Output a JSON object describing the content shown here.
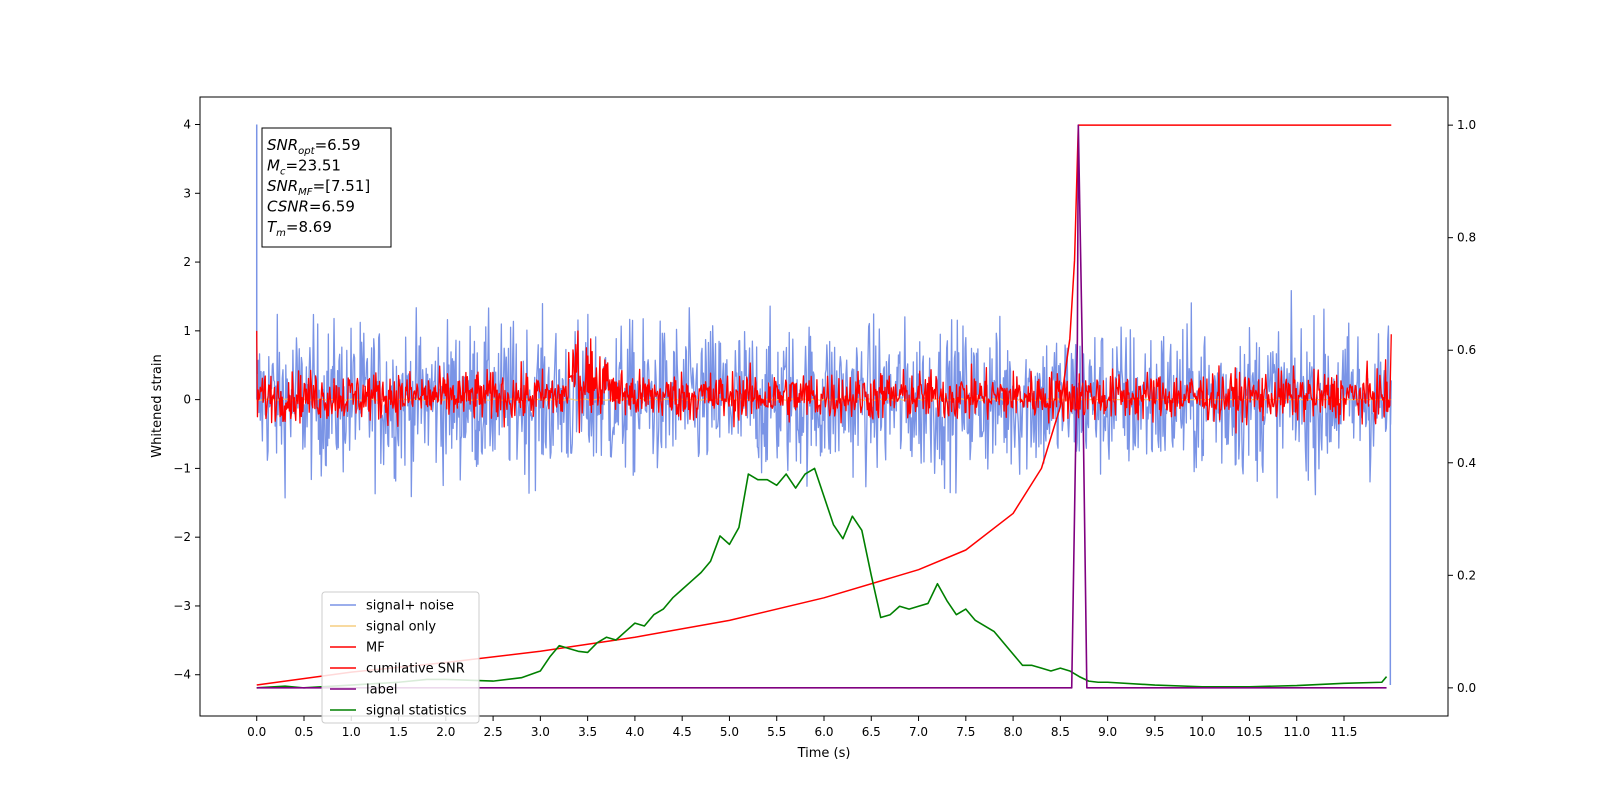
{
  "chart_data": {
    "type": "line",
    "xlabel": "Time (s)",
    "ylabel_left": "Whitened strain",
    "ylabel_right": "",
    "xlim": [
      -0.6,
      12.6
    ],
    "ylim_left": [
      -4.6,
      4.4
    ],
    "ylim_right": [
      -0.05,
      1.05
    ],
    "x_ticks": [
      "0.0",
      "0.5",
      "1.0",
      "1.5",
      "2.0",
      "2.5",
      "3.0",
      "3.5",
      "4.0",
      "4.5",
      "5.0",
      "5.5",
      "6.0",
      "6.5",
      "7.0",
      "7.5",
      "8.0",
      "8.5",
      "9.0",
      "9.5",
      "10.0",
      "10.5",
      "11.0",
      "11.5"
    ],
    "y_ticks_left": [
      "4",
      "3",
      "2",
      "1",
      "0",
      "−1",
      "−2",
      "−3",
      "−4"
    ],
    "y_ticks_right": [
      "1.0",
      "0.8",
      "0.6",
      "0.4",
      "0.2",
      "0.0"
    ],
    "grid": false,
    "legend_position": "lower-left",
    "annotation": {
      "lines": [
        {
          "var": "SNR",
          "sub": "opt",
          "value": "=6.59"
        },
        {
          "var": "M",
          "sub": "c",
          "value": "=23.51"
        },
        {
          "var": "SNR",
          "sub": "MF",
          "value": "=[7.51]"
        },
        {
          "var": "CSNR",
          "sub": "",
          "value": "=6.59"
        },
        {
          "var": "T",
          "sub": "m",
          "value": "=8.69"
        }
      ]
    },
    "series": [
      {
        "name": "signal+ noise",
        "color": "#7a94e6",
        "axis": "left",
        "style": "noise",
        "x_range": [
          0,
          12
        ],
        "center": 0.0,
        "amplitude": 0.55,
        "spikes": [
          [
            0.0,
            4.0
          ],
          [
            11.99,
            -4.15
          ]
        ]
      },
      {
        "name": "signal only",
        "color": "#f5c66b",
        "axis": "left",
        "style": "chirp",
        "x_range": [
          0,
          12
        ],
        "merger": 8.69,
        "amplitude": 0.35
      },
      {
        "name": "MF",
        "color": "#ff0000",
        "axis": "left",
        "style": "noise",
        "x_range": [
          0,
          12
        ],
        "center": 0.05,
        "amplitude": 0.18,
        "start_value": 1.0,
        "end_value": 0.95,
        "bump": [
          3.3,
          3.9,
          0.7
        ]
      },
      {
        "name": "cumilative SNR",
        "color": "#ff0000",
        "axis": "right",
        "x": [
          0.0,
          1.0,
          2.0,
          3.0,
          4.0,
          5.0,
          6.0,
          7.0,
          7.5,
          8.0,
          8.3,
          8.5,
          8.6,
          8.65,
          8.69,
          12.0
        ],
        "y": [
          0.005,
          0.028,
          0.045,
          0.065,
          0.09,
          0.12,
          0.16,
          0.21,
          0.245,
          0.31,
          0.39,
          0.5,
          0.62,
          0.76,
          1.0,
          1.0
        ]
      },
      {
        "name": "label",
        "color": "#800080",
        "axis": "right",
        "x": [
          0.0,
          8.62,
          8.68,
          8.69,
          8.73,
          8.78,
          11.95
        ],
        "y": [
          0.0,
          0.0,
          0.62,
          1.0,
          0.62,
          0.0,
          0.0
        ]
      },
      {
        "name": "signal statistics",
        "color": "#008000",
        "axis": "right",
        "x": [
          0.0,
          0.3,
          0.5,
          1.0,
          1.5,
          1.8,
          2.0,
          2.5,
          2.8,
          3.0,
          3.1,
          3.2,
          3.3,
          3.4,
          3.5,
          3.6,
          3.7,
          3.8,
          3.9,
          4.0,
          4.1,
          4.2,
          4.3,
          4.4,
          4.5,
          4.6,
          4.7,
          4.8,
          4.9,
          5.0,
          5.1,
          5.2,
          5.3,
          5.4,
          5.5,
          5.6,
          5.7,
          5.8,
          5.9,
          6.0,
          6.1,
          6.2,
          6.3,
          6.4,
          6.5,
          6.6,
          6.7,
          6.8,
          6.9,
          7.0,
          7.1,
          7.2,
          7.3,
          7.4,
          7.5,
          7.6,
          7.7,
          7.8,
          7.9,
          8.0,
          8.1,
          8.2,
          8.3,
          8.4,
          8.5,
          8.6,
          8.7,
          8.8,
          8.9,
          9.0,
          9.5,
          10.0,
          10.5,
          11.0,
          11.5,
          11.9,
          11.95
        ],
        "y": [
          0.0,
          0.003,
          0.0,
          0.005,
          0.01,
          0.015,
          0.015,
          0.012,
          0.018,
          0.03,
          0.055,
          0.075,
          0.07,
          0.065,
          0.063,
          0.08,
          0.09,
          0.085,
          0.1,
          0.115,
          0.11,
          0.13,
          0.14,
          0.16,
          0.175,
          0.19,
          0.205,
          0.225,
          0.27,
          0.255,
          0.285,
          0.38,
          0.37,
          0.37,
          0.36,
          0.38,
          0.355,
          0.38,
          0.39,
          0.34,
          0.29,
          0.265,
          0.305,
          0.28,
          0.2,
          0.125,
          0.13,
          0.145,
          0.14,
          0.145,
          0.15,
          0.185,
          0.155,
          0.13,
          0.14,
          0.12,
          0.11,
          0.1,
          0.08,
          0.06,
          0.04,
          0.04,
          0.035,
          0.03,
          0.035,
          0.03,
          0.02,
          0.012,
          0.01,
          0.01,
          0.005,
          0.002,
          0.002,
          0.004,
          0.008,
          0.01,
          0.02
        ]
      }
    ]
  }
}
